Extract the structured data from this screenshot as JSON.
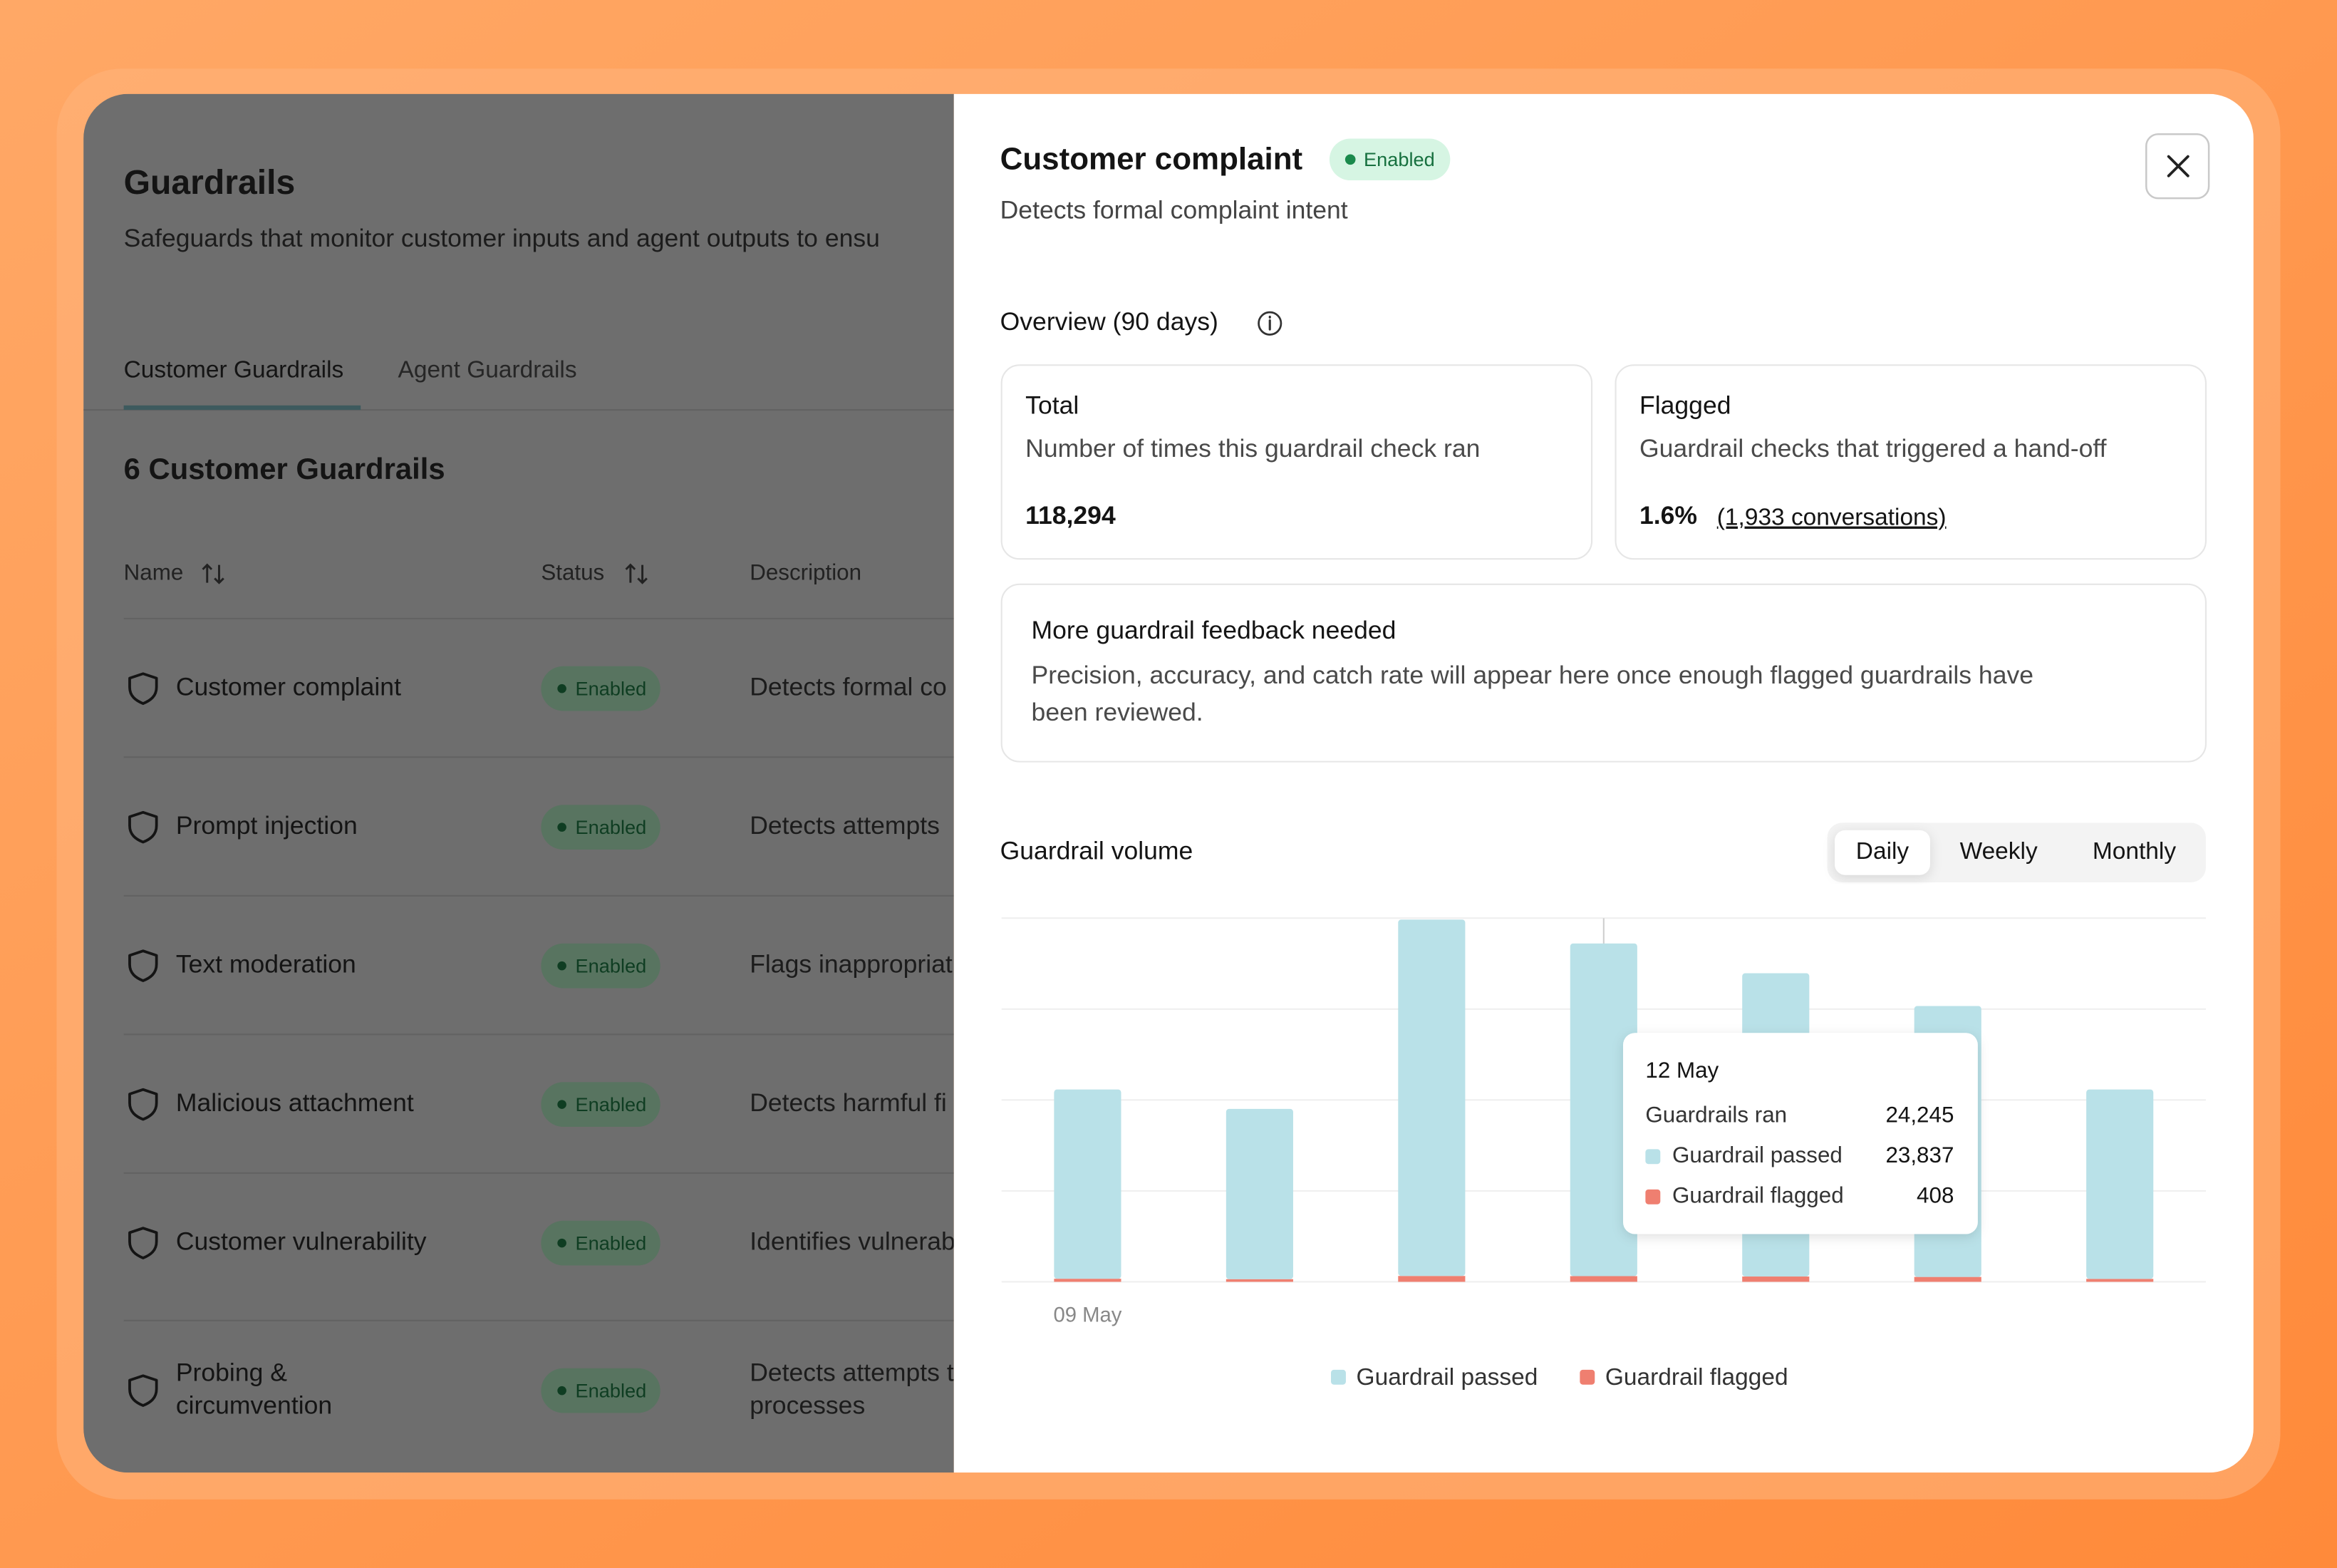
{
  "sidebar": {
    "title": "Guardrails",
    "subtitle": "Safeguards that monitor customer inputs and agent outputs to ensu",
    "tabs": [
      "Customer Guardrails",
      "Agent Guardrails"
    ],
    "count_heading": "6 Customer Guardrails",
    "columns": [
      "Name",
      "Status",
      "Description"
    ],
    "rows": [
      {
        "name_lines": [
          "Customer complaint"
        ],
        "status": "Enabled",
        "description_lines": [
          "Detects formal co"
        ]
      },
      {
        "name_lines": [
          "Prompt injection"
        ],
        "status": "Enabled",
        "description_lines": [
          "Detects attempts"
        ]
      },
      {
        "name_lines": [
          "Text moderation"
        ],
        "status": "Enabled",
        "description_lines": [
          "Flags inappropriat"
        ]
      },
      {
        "name_lines": [
          "Malicious attachment"
        ],
        "status": "Enabled",
        "description_lines": [
          "Detects harmful fi"
        ]
      },
      {
        "name_lines": [
          "Customer vulnerability"
        ],
        "status": "Enabled",
        "description_lines": [
          "Identifies vulnerab"
        ]
      },
      {
        "name_lines": [
          "Probing &",
          "circumvention"
        ],
        "status": "Enabled",
        "description_lines": [
          "Detects attempts t",
          "processes"
        ]
      }
    ]
  },
  "detail": {
    "title": "Customer complaint",
    "status": "Enabled",
    "subtitle": "Detects formal complaint intent",
    "overview_heading": "Overview (90 days)",
    "total_card": {
      "title": "Total",
      "description": "Number of times this guardrail check ran",
      "value": "118,294"
    },
    "flagged_card": {
      "title": "Flagged",
      "description": "Guardrail checks that triggered a hand-off",
      "value": "1.6%",
      "detail": "(1,933 conversations)"
    },
    "feedback_card": {
      "title": "More guardrail feedback needed",
      "text_lines": [
        "Precision, accuracy, and catch rate will appear here once enough flagged guardrails have",
        "been reviewed."
      ]
    },
    "volume_heading": "Guardrail volume",
    "periods": [
      "Daily",
      "Weekly",
      "Monthly"
    ],
    "active_period": "Daily"
  },
  "chart_data": {
    "type": "bar",
    "stacked": true,
    "categories": [
      "09 May",
      null,
      null,
      null,
      null,
      null,
      null
    ],
    "series": [
      {
        "name": "Guardrail passed",
        "color": "#b9e1e8",
        "values": [
          13560,
          12200,
          25530,
          23837,
          21730,
          19410,
          13570
        ]
      },
      {
        "name": "Guardrail flagged",
        "color": "#ef7f70",
        "values": [
          220,
          190,
          420,
          408,
          380,
          350,
          210
        ]
      }
    ],
    "grid": true,
    "legend": "bottom",
    "tooltip": {
      "title": "12 May",
      "rows": [
        {
          "label": "Guardrails ran",
          "value": "24,245"
        },
        {
          "label": "Guardrail passed",
          "value": "23,837"
        },
        {
          "label": "Guardrail flagged",
          "value": "408"
        }
      ]
    }
  }
}
